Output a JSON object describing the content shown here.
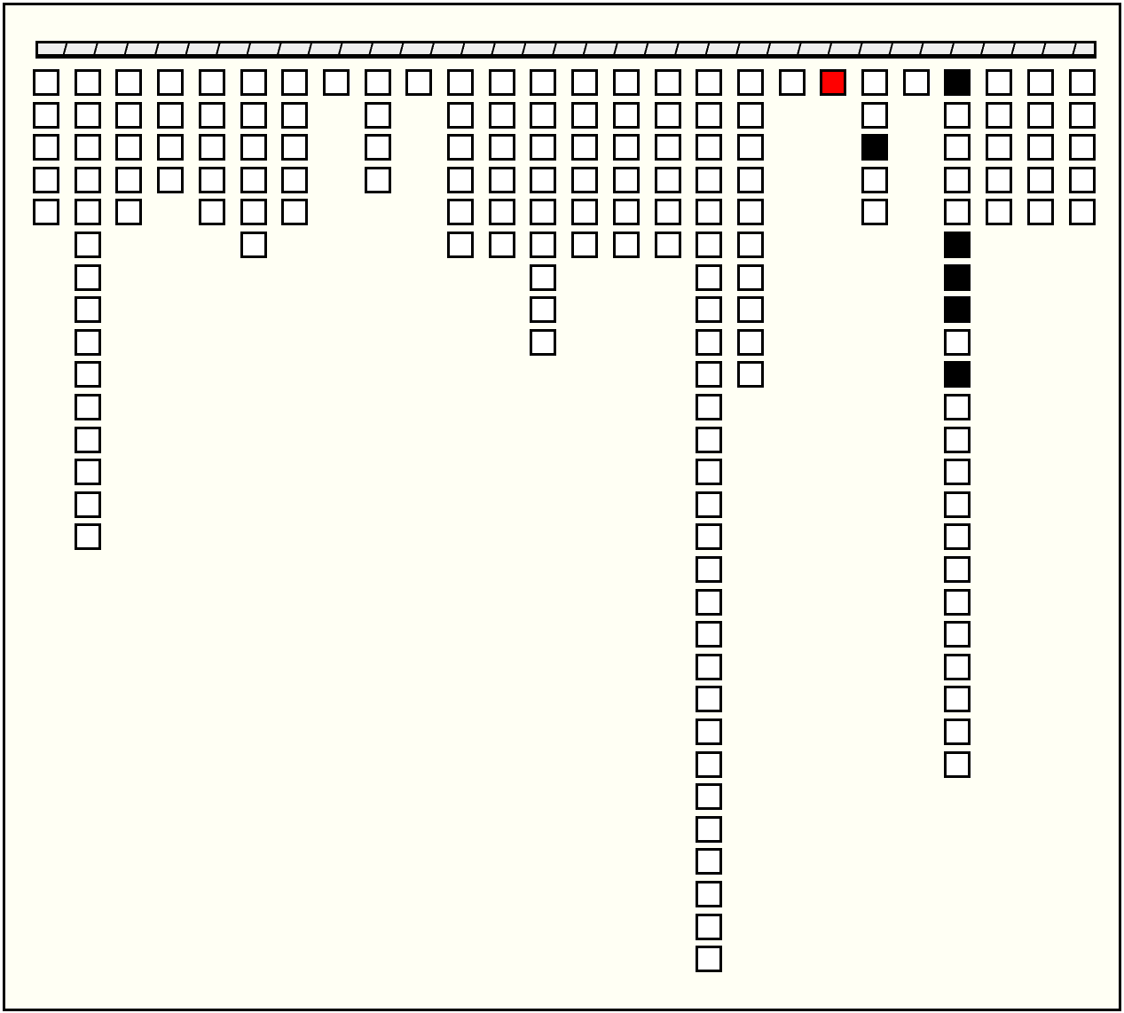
{
  "colors": {
    "background": "#fffff4",
    "cell": "#ffffff",
    "border": "#000000",
    "black": "#000000",
    "red": "#ff0000"
  },
  "columns": [
    {
      "count": 5
    },
    {
      "count": 15
    },
    {
      "count": 5
    },
    {
      "count": 4
    },
    {
      "count": 5
    },
    {
      "count": 6
    },
    {
      "count": 5
    },
    {
      "count": 1
    },
    {
      "count": 4
    },
    {
      "count": 1
    },
    {
      "count": 6
    },
    {
      "count": 6
    },
    {
      "count": 9
    },
    {
      "count": 6
    },
    {
      "count": 6
    },
    {
      "count": 6
    },
    {
      "count": 28
    },
    {
      "count": 10
    },
    {
      "count": 1
    },
    {
      "count": 1,
      "red": [
        0
      ]
    },
    {
      "count": 5,
      "black": [
        2
      ]
    },
    {
      "count": 1
    },
    {
      "count": 22,
      "black": [
        0,
        5,
        6,
        7,
        9
      ]
    },
    {
      "count": 5
    },
    {
      "count": 5
    },
    {
      "count": 5
    }
  ]
}
